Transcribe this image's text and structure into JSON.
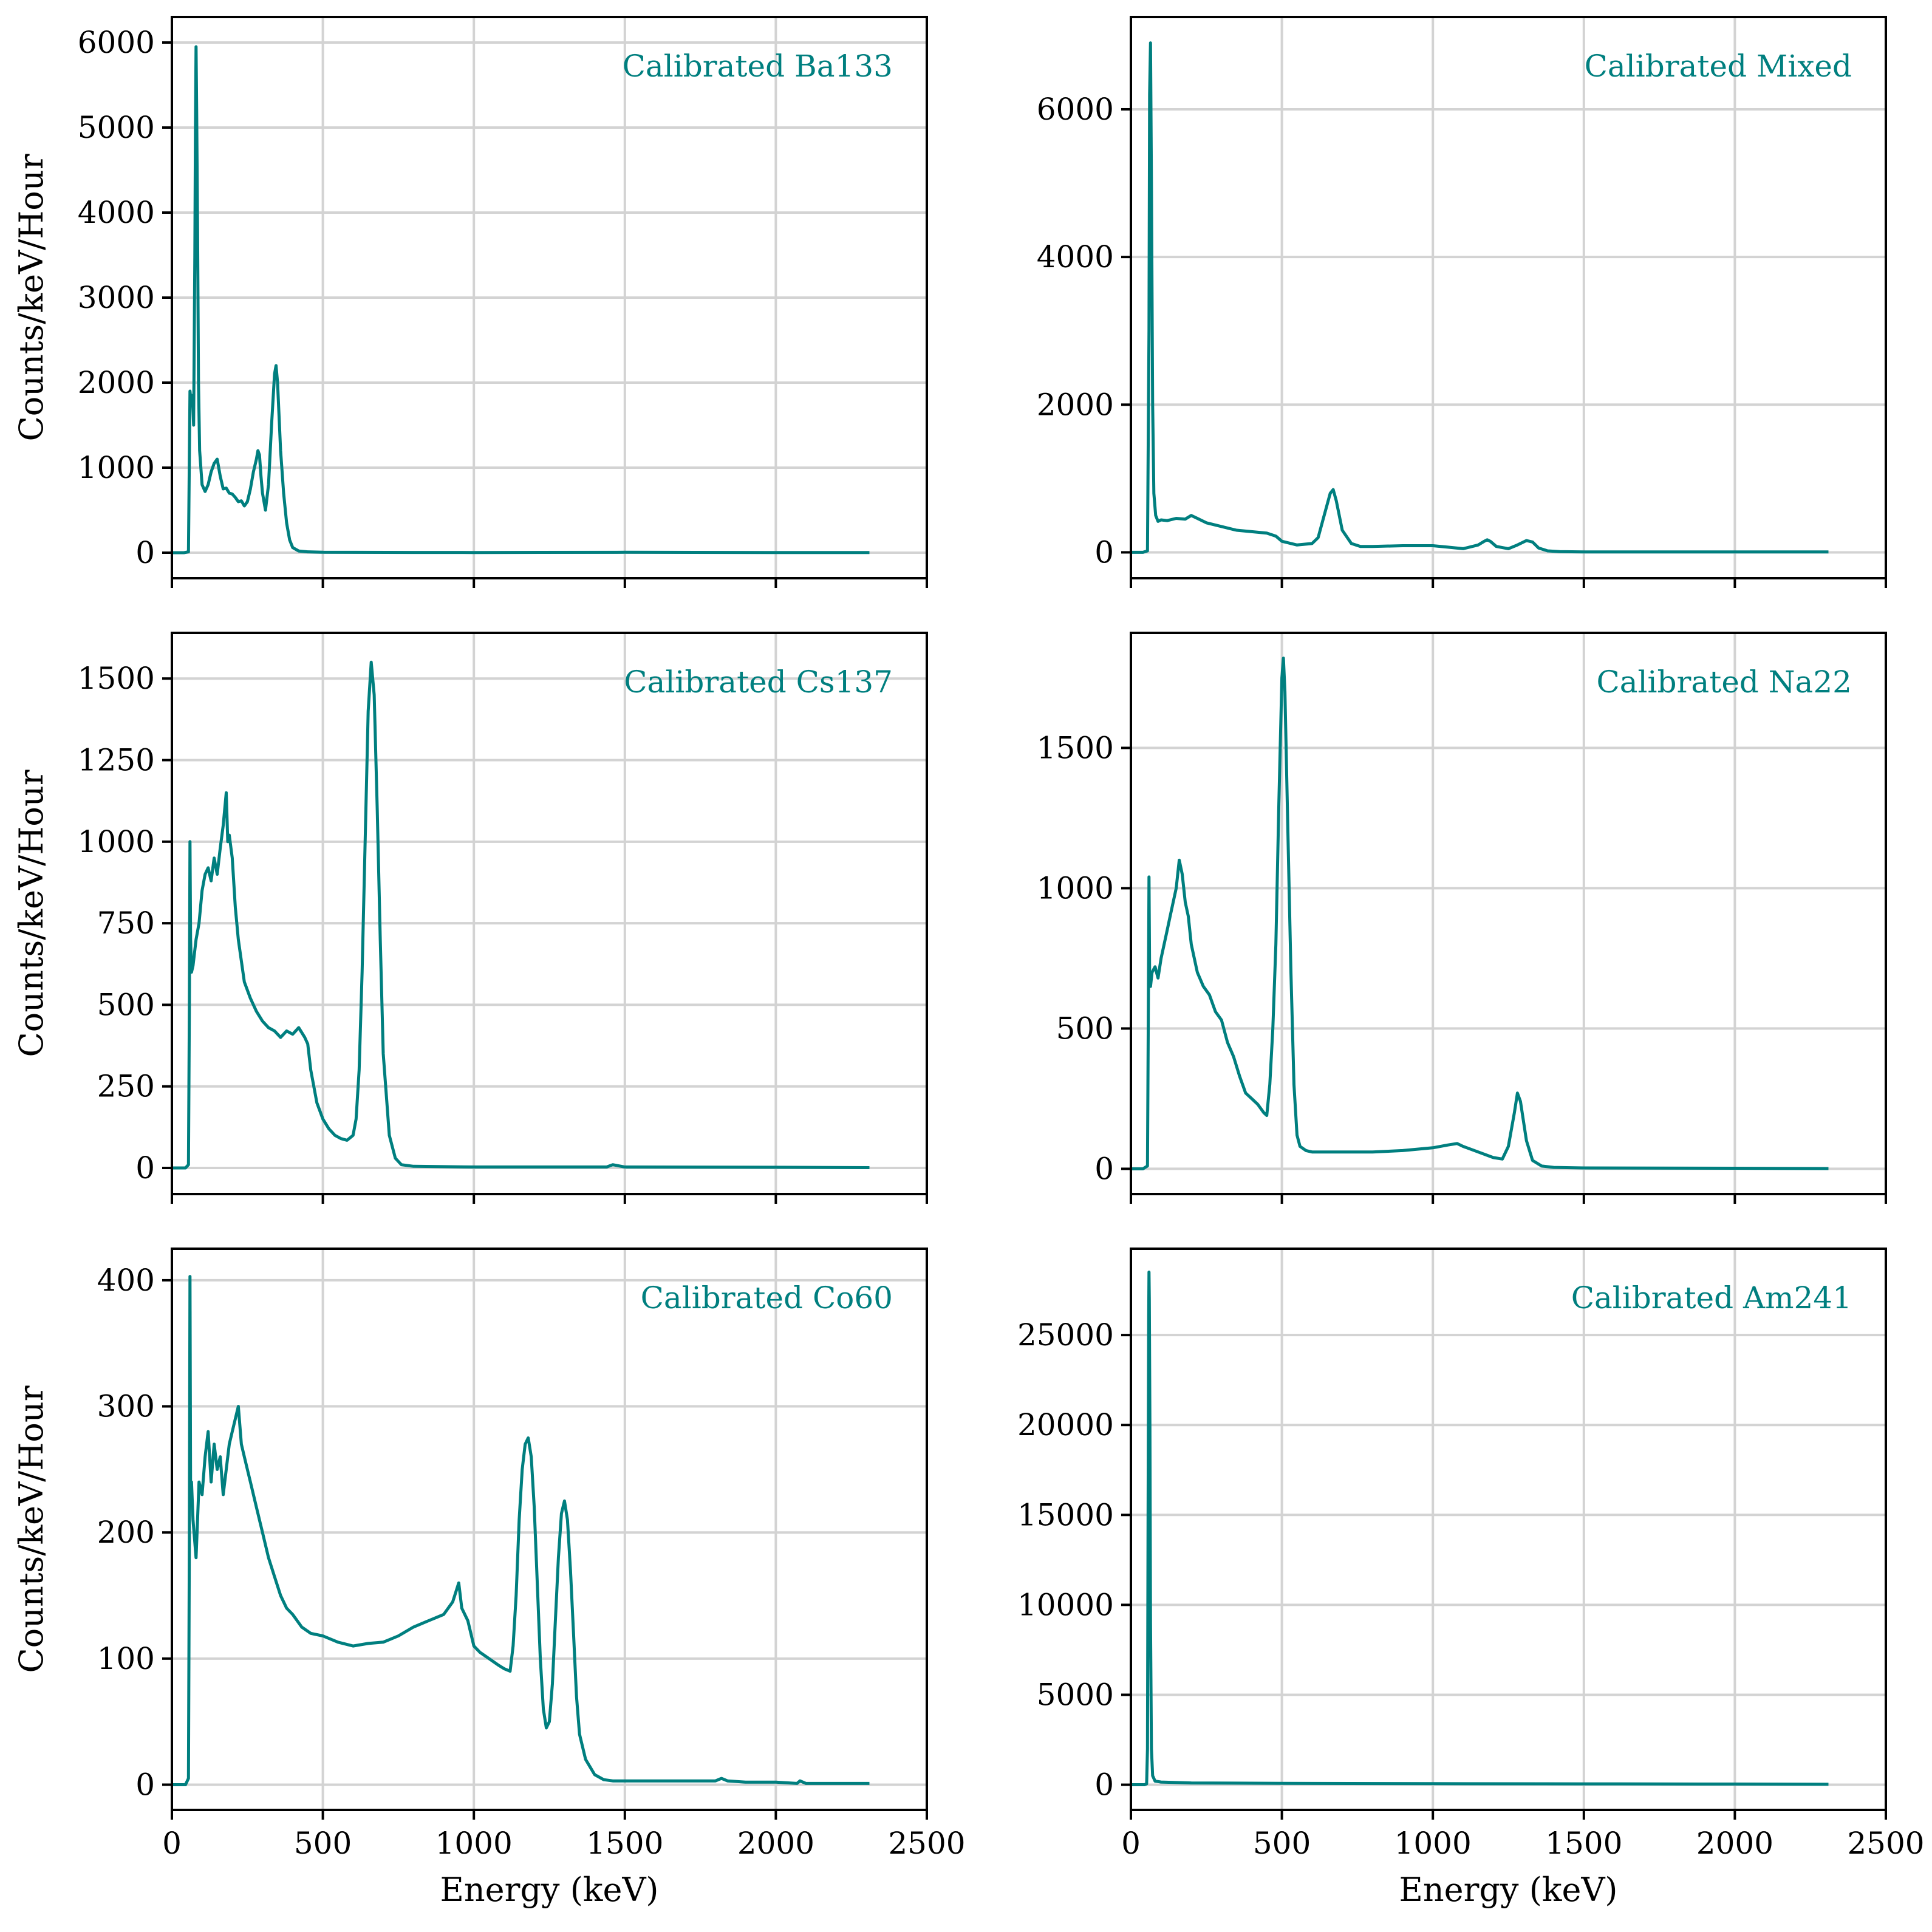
{
  "figure": {
    "xlabel": "Energy (keV)",
    "ylabel": "Counts/keV/Hour"
  },
  "colors": {
    "line": "#007f7f",
    "grid": "#d3d3d3",
    "axes": "#000000",
    "background": "#ffffff"
  },
  "chart_data": [
    {
      "type": "line",
      "title": "Calibrated Ba133",
      "xlabel": "",
      "ylabel": "Counts/keV/Hour",
      "xlim": [
        0,
        2500
      ],
      "ylim": [
        -300,
        6300
      ],
      "xticks": [
        0,
        500,
        1000,
        1500,
        2000,
        2500
      ],
      "show_xticklabels": false,
      "yticks": [
        0,
        1000,
        2000,
        3000,
        4000,
        5000,
        6000
      ],
      "ytick_labels": [
        "0",
        "1000",
        "2000",
        "3000",
        "4000",
        "5000",
        "6000"
      ],
      "grid": true,
      "annotation_position": "top-right",
      "series": [
        {
          "name": "Ba133",
          "x": [
            0,
            40,
            55,
            60,
            63,
            68,
            72,
            76,
            78,
            80,
            82,
            85,
            88,
            92,
            100,
            110,
            120,
            130,
            140,
            150,
            160,
            170,
            180,
            190,
            200,
            210,
            220,
            230,
            240,
            250,
            260,
            270,
            280,
            285,
            290,
            295,
            300,
            310,
            320,
            330,
            340,
            345,
            350,
            355,
            360,
            370,
            380,
            390,
            400,
            420,
            450,
            500,
            800,
            1000,
            1500,
            2000,
            2310
          ],
          "y": [
            0,
            0,
            10,
            1900,
            1800,
            1850,
            1500,
            3500,
            5000,
            5950,
            5200,
            3800,
            2000,
            1200,
            800,
            720,
            800,
            950,
            1050,
            1100,
            900,
            750,
            760,
            700,
            690,
            650,
            600,
            610,
            550,
            600,
            750,
            950,
            1100,
            1200,
            1150,
            900,
            700,
            500,
            800,
            1500,
            2100,
            2200,
            2000,
            1600,
            1200,
            700,
            350,
            150,
            60,
            20,
            10,
            5,
            3,
            2,
            5,
            2,
            2
          ]
        }
      ]
    },
    {
      "type": "line",
      "title": "Calibrated Mixed",
      "xlabel": "",
      "ylabel": "",
      "xlim": [
        0,
        2500
      ],
      "ylim": [
        -350,
        7250
      ],
      "xticks": [
        0,
        500,
        1000,
        1500,
        2000,
        2500
      ],
      "show_xticklabels": false,
      "yticks": [
        0,
        2000,
        4000,
        6000
      ],
      "ytick_labels": [
        "0",
        "2000",
        "4000",
        "6000"
      ],
      "grid": true,
      "annotation_position": "top-right",
      "series": [
        {
          "name": "Mixed",
          "x": [
            0,
            40,
            55,
            60,
            62,
            65,
            68,
            72,
            76,
            82,
            90,
            100,
            120,
            150,
            180,
            200,
            220,
            250,
            300,
            350,
            400,
            450,
            480,
            500,
            550,
            600,
            620,
            640,
            660,
            670,
            680,
            700,
            730,
            760,
            800,
            900,
            1000,
            1050,
            1100,
            1150,
            1170,
            1180,
            1190,
            1210,
            1250,
            1280,
            1310,
            1330,
            1350,
            1380,
            1420,
            1500,
            2000,
            2310
          ],
          "y": [
            0,
            0,
            20,
            3000,
            6200,
            6900,
            5000,
            2000,
            800,
            500,
            420,
            440,
            430,
            460,
            450,
            500,
            460,
            400,
            350,
            300,
            280,
            260,
            220,
            150,
            100,
            120,
            200,
            500,
            800,
            850,
            700,
            300,
            120,
            80,
            80,
            90,
            90,
            70,
            50,
            100,
            150,
            170,
            150,
            80,
            50,
            100,
            160,
            140,
            60,
            20,
            10,
            5,
            5,
            5
          ]
        }
      ]
    },
    {
      "type": "line",
      "title": "Calibrated Cs137",
      "xlabel": "",
      "ylabel": "Counts/keV/Hour",
      "xlim": [
        0,
        2500
      ],
      "ylim": [
        -80,
        1640
      ],
      "xticks": [
        0,
        500,
        1000,
        1500,
        2000,
        2500
      ],
      "show_xticklabels": false,
      "yticks": [
        0,
        250,
        500,
        750,
        1000,
        1250,
        1500
      ],
      "ytick_labels": [
        "0",
        "250",
        "500",
        "750",
        "1000",
        "1250",
        "1500"
      ],
      "grid": true,
      "annotation_position": "top-right",
      "series": [
        {
          "name": "Cs137",
          "x": [
            0,
            45,
            55,
            58,
            60,
            62,
            65,
            70,
            80,
            90,
            100,
            110,
            120,
            130,
            140,
            150,
            160,
            170,
            180,
            185,
            190,
            200,
            210,
            220,
            240,
            260,
            280,
            300,
            320,
            340,
            360,
            380,
            400,
            420,
            440,
            450,
            460,
            480,
            500,
            520,
            540,
            560,
            580,
            600,
            610,
            620,
            630,
            640,
            650,
            660,
            670,
            680,
            690,
            700,
            720,
            740,
            760,
            800,
            1000,
            1440,
            1460,
            1500,
            2000,
            2310
          ],
          "y": [
            0,
            0,
            10,
            500,
            1000,
            700,
            600,
            620,
            700,
            750,
            850,
            900,
            920,
            880,
            950,
            900,
            980,
            1050,
            1150,
            1000,
            1020,
            950,
            800,
            700,
            570,
            520,
            480,
            450,
            430,
            420,
            400,
            420,
            410,
            430,
            400,
            380,
            300,
            200,
            150,
            120,
            100,
            90,
            85,
            100,
            150,
            300,
            600,
            1000,
            1400,
            1550,
            1450,
            1100,
            700,
            350,
            100,
            30,
            10,
            5,
            3,
            3,
            10,
            3,
            2,
            1
          ]
        }
      ]
    },
    {
      "type": "line",
      "title": "Calibrated Na22",
      "xlabel": "",
      "ylabel": "",
      "xlim": [
        0,
        2500
      ],
      "ylim": [
        -90,
        1910
      ],
      "xticks": [
        0,
        500,
        1000,
        1500,
        2000,
        2500
      ],
      "show_xticklabels": false,
      "yticks": [
        0,
        500,
        1000,
        1500
      ],
      "ytick_labels": [
        "0",
        "500",
        "1000",
        "1500"
      ],
      "grid": true,
      "annotation_position": "top-right",
      "series": [
        {
          "name": "Na22",
          "x": [
            0,
            40,
            55,
            58,
            60,
            62,
            65,
            70,
            80,
            90,
            100,
            110,
            120,
            130,
            140,
            150,
            160,
            170,
            180,
            190,
            200,
            220,
            240,
            260,
            280,
            300,
            320,
            340,
            360,
            380,
            400,
            420,
            440,
            450,
            460,
            470,
            480,
            490,
            500,
            505,
            510,
            520,
            530,
            540,
            550,
            560,
            580,
            600,
            700,
            800,
            900,
            1000,
            1050,
            1080,
            1100,
            1150,
            1200,
            1230,
            1250,
            1270,
            1280,
            1290,
            1310,
            1330,
            1360,
            1400,
            1500,
            2000,
            2310
          ],
          "y": [
            0,
            0,
            10,
            600,
            1040,
            700,
            650,
            700,
            720,
            680,
            750,
            800,
            850,
            900,
            950,
            1000,
            1100,
            1050,
            950,
            900,
            800,
            700,
            650,
            620,
            560,
            530,
            450,
            400,
            330,
            270,
            250,
            230,
            200,
            190,
            300,
            500,
            800,
            1300,
            1750,
            1820,
            1700,
            1200,
            700,
            300,
            120,
            80,
            65,
            60,
            60,
            60,
            65,
            75,
            85,
            90,
            80,
            60,
            40,
            35,
            80,
            200,
            270,
            240,
            100,
            30,
            10,
            5,
            3,
            2,
            1
          ]
        }
      ]
    },
    {
      "type": "line",
      "title": "Calibrated Co60",
      "xlabel": "Energy (keV)",
      "ylabel": "Counts/keV/Hour",
      "xlim": [
        0,
        2500
      ],
      "ylim": [
        -20,
        425
      ],
      "xticks": [
        0,
        500,
        1000,
        1500,
        2000,
        2500
      ],
      "xtick_labels": [
        "0",
        "500",
        "1000",
        "1500",
        "2000",
        "2500"
      ],
      "show_xticklabels": true,
      "yticks": [
        0,
        100,
        200,
        300,
        400
      ],
      "ytick_labels": [
        "0",
        "100",
        "200",
        "300",
        "400"
      ],
      "grid": true,
      "annotation_position": "top-right",
      "series": [
        {
          "name": "Co60",
          "x": [
            0,
            45,
            55,
            58,
            60,
            62,
            65,
            70,
            80,
            90,
            100,
            110,
            120,
            130,
            140,
            150,
            160,
            170,
            180,
            190,
            200,
            210,
            220,
            230,
            240,
            250,
            260,
            280,
            300,
            320,
            340,
            360,
            380,
            400,
            430,
            460,
            500,
            550,
            600,
            650,
            700,
            750,
            800,
            850,
            900,
            930,
            950,
            960,
            980,
            1000,
            1020,
            1050,
            1080,
            1100,
            1120,
            1130,
            1140,
            1150,
            1160,
            1170,
            1180,
            1190,
            1200,
            1210,
            1220,
            1230,
            1240,
            1250,
            1260,
            1270,
            1280,
            1290,
            1300,
            1310,
            1320,
            1330,
            1340,
            1350,
            1370,
            1400,
            1430,
            1460,
            1500,
            1800,
            1820,
            1840,
            1900,
            2000,
            2070,
            2080,
            2100,
            2200,
            2310
          ],
          "y": [
            0,
            0,
            5,
            200,
            403,
            230,
            240,
            210,
            180,
            240,
            230,
            260,
            280,
            240,
            270,
            250,
            260,
            230,
            250,
            270,
            280,
            290,
            300,
            270,
            260,
            250,
            240,
            220,
            200,
            180,
            165,
            150,
            140,
            135,
            125,
            120,
            118,
            113,
            110,
            112,
            113,
            118,
            125,
            130,
            135,
            145,
            160,
            140,
            130,
            110,
            105,
            100,
            95,
            92,
            90,
            110,
            150,
            210,
            250,
            270,
            275,
            260,
            220,
            160,
            100,
            60,
            45,
            50,
            80,
            130,
            180,
            215,
            225,
            210,
            170,
            120,
            70,
            40,
            20,
            8,
            4,
            3,
            3,
            3,
            5,
            3,
            2,
            2,
            1,
            3,
            1,
            1,
            1
          ]
        }
      ]
    },
    {
      "type": "line",
      "title": "Calibrated Am241",
      "xlabel": "Energy (keV)",
      "ylabel": "",
      "xlim": [
        0,
        2500
      ],
      "ylim": [
        -1400,
        29800
      ],
      "xticks": [
        0,
        500,
        1000,
        1500,
        2000,
        2500
      ],
      "xtick_labels": [
        "0",
        "500",
        "1000",
        "1500",
        "2000",
        "2500"
      ],
      "show_xticklabels": true,
      "yticks": [
        0,
        5000,
        10000,
        15000,
        20000,
        25000
      ],
      "ytick_labels": [
        "0",
        "5000",
        "10000",
        "15000",
        "20000",
        "25000"
      ],
      "grid": true,
      "annotation_position": "top-right",
      "series": [
        {
          "name": "Am241",
          "x": [
            0,
            45,
            52,
            55,
            57,
            59,
            60,
            61,
            63,
            65,
            68,
            72,
            80,
            100,
            200,
            500,
            1000,
            1500,
            2000,
            2310
          ],
          "y": [
            0,
            0,
            50,
            2000,
            15000,
            26000,
            28500,
            27000,
            20000,
            9000,
            2000,
            500,
            200,
            150,
            100,
            80,
            60,
            50,
            40,
            30
          ]
        }
      ]
    }
  ]
}
